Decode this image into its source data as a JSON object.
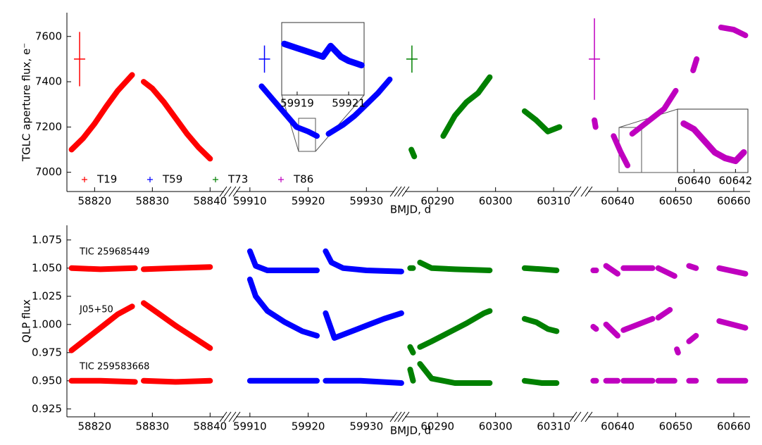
{
  "chart_data": [
    {
      "type": "line",
      "ylabel": "TGLC aperture flux, e⁻",
      "xlabel": "BMJD, d",
      "ylim": [
        6915,
        7705
      ],
      "yticks": [
        7000,
        7200,
        7400,
        7600
      ],
      "legend": "lower left",
      "segments": [
        {
          "xlim": [
            58815.2,
            58842.4
          ],
          "xticks": [
            58820,
            58830,
            58840
          ],
          "series": [
            {
              "name": "T19",
              "color": "#ff0000",
              "x": [
                58816,
                58818,
                58820,
                58822,
                58824,
                58826.5,
                null,
                58828.5,
                58830,
                58832,
                58834,
                58836,
                58838,
                58840
              ],
              "values": [
                7100,
                7150,
                7215,
                7290,
                7360,
                7430,
                null,
                7400,
                7370,
                7310,
                7240,
                7170,
                7110,
                7060
              ],
              "errorbar": {
                "x": 58817.4,
                "y": 7500,
                "yerr": 120
              }
            }
          ]
        },
        {
          "xlim": [
            59907.6,
            59934.8
          ],
          "xticks": [
            59910,
            59920,
            59930
          ],
          "series": [
            {
              "name": "T59",
              "color": "#0000ff",
              "x": [
                59912,
                59914,
                59916,
                59918,
                59920,
                59921.5,
                null,
                59923.5,
                59926,
                59928,
                59930,
                59932,
                59934
              ],
              "values": [
                7380,
                7320,
                7260,
                7200,
                7180,
                7160,
                null,
                7170,
                7210,
                7250,
                7300,
                7350,
                7410
              ],
              "errorbar": {
                "x": 59912.5,
                "y": 7500,
                "yerr": 60
              }
            }
          ]
        },
        {
          "xlim": [
            60284.4,
            60313.5
          ],
          "xticks": [
            60290,
            60300,
            60310
          ],
          "series": [
            {
              "name": "T73",
              "color": "#008000",
              "x": [
                60285.5,
                60286,
                null,
                60291,
                60293,
                60295,
                60297,
                60299,
                null,
                60305,
                60307,
                60309,
                60311
              ],
              "values": [
                7100,
                7070,
                null,
                7160,
                7250,
                7310,
                7350,
                7420,
                null,
                7270,
                7230,
                7180,
                7200
              ],
              "errorbar": {
                "x": 60285.6,
                "y": 7500,
                "yerr": 60
              }
            }
          ]
        },
        {
          "xlim": [
            60634.9,
            60662.8
          ],
          "xticks": [
            60640,
            60650,
            60660
          ],
          "series": [
            {
              "name": "T86",
              "color": "#bf00bf",
              "x": [
                60636,
                60636.2,
                null,
                60639.3,
                60640.5,
                60641.7,
                null,
                60642.5,
                60645,
                60648,
                60650,
                null,
                60653,
                60653.6,
                null,
                60657.8,
                60660,
                60662
              ],
              "values": [
                7230,
                7200,
                null,
                7160,
                7090,
                7030,
                null,
                7170,
                7220,
                7280,
                7360,
                null,
                7450,
                7500,
                null,
                7640,
                7630,
                7605
              ],
              "errorbar": {
                "x": 60636,
                "y": 7500,
                "yerr": 180
              }
            }
          ]
        }
      ],
      "insets": [
        {
          "xlim": [
            59918.4,
            59921.6
          ],
          "xticks": [
            59919,
            59921
          ],
          "ylim": [
            7080,
            7250
          ],
          "color": "#0000ff",
          "x": [
            59918.5,
            59919,
            59919.5,
            59920,
            59920.3,
            59920.7,
            59921,
            59921.5
          ],
          "values": [
            7200,
            7190,
            7180,
            7170,
            7195,
            7170,
            7160,
            7150
          ]
        },
        {
          "xlim": [
            60639.2,
            60642.6
          ],
          "xticks": [
            60640,
            60642
          ],
          "ylim": [
            6990,
            7210
          ],
          "color": "#bf00bf",
          "x": [
            60639.5,
            60640,
            60640.5,
            60641,
            60641.5,
            60642,
            60642.4
          ],
          "values": [
            7160,
            7140,
            7100,
            7060,
            7040,
            7030,
            7060
          ]
        }
      ]
    },
    {
      "type": "line",
      "ylabel": "QLP flux",
      "xlabel": "BMJD, d",
      "ylim": [
        0.918,
        1.088
      ],
      "yticks": [
        0.925,
        {
          "value": 0.95,
          "label": "0.950"
        },
        0.975,
        {
          "value": 1,
          "label": "1.000"
        },
        1.025,
        {
          "value": 1.05,
          "label": "1.050"
        },
        1.075
      ],
      "annotations": [
        "TIC 259685449",
        "J05+50",
        "TIC 259583668"
      ],
      "segments": [
        {
          "xlim": [
            58815.2,
            58842.4
          ],
          "xticks": [
            58820,
            58830,
            58840
          ],
          "color": "#ff0000",
          "series": [
            {
              "x": [
                58816,
                58821,
                58827,
                null,
                58828.5,
                58834,
                58840
              ],
              "values": [
                1.05,
                1.049,
                1.05,
                null,
                1.049,
                1.05,
                1.051
              ]
            },
            {
              "x": [
                58816,
                58818,
                58820,
                58822,
                58824,
                58826.5,
                null,
                58828.5,
                58831,
                58834,
                58837,
                58840
              ],
              "values": [
                0.977,
                0.985,
                0.993,
                1.001,
                1.009,
                1.016,
                null,
                1.019,
                1.01,
                0.999,
                0.989,
                0.979
              ]
            },
            {
              "x": [
                58816,
                58821,
                58827,
                null,
                58828.5,
                58834,
                58840
              ],
              "values": [
                0.95,
                0.95,
                0.949,
                null,
                0.95,
                0.949,
                0.95
              ]
            }
          ]
        },
        {
          "xlim": [
            59907.6,
            59934.8
          ],
          "xticks": [
            59910,
            59920,
            59930
          ],
          "color": "#0000ff",
          "series": [
            {
              "x": [
                59910,
                59911,
                59913,
                59917,
                59921.5,
                null,
                59923,
                59924,
                59926,
                59930,
                59936
              ],
              "values": [
                1.065,
                1.052,
                1.048,
                1.048,
                1.048,
                null,
                1.065,
                1.055,
                1.05,
                1.048,
                1.047
              ]
            },
            {
              "x": [
                59910,
                59911,
                59913,
                59916,
                59919,
                59921.5,
                null,
                59923,
                59924.5,
                59927,
                59930,
                59933,
                59936
              ],
              "values": [
                1.04,
                1.025,
                1.012,
                1.002,
                0.994,
                0.99,
                null,
                1.01,
                0.988,
                0.993,
                0.999,
                1.005,
                1.01
              ]
            },
            {
              "x": [
                59910,
                59915,
                59921.5,
                null,
                59923,
                59929,
                59936
              ],
              "values": [
                0.95,
                0.95,
                0.95,
                null,
                0.95,
                0.95,
                0.948
              ]
            }
          ]
        },
        {
          "xlim": [
            60284.4,
            60313.5
          ],
          "xticks": [
            60290,
            60300,
            60310
          ],
          "color": "#008000",
          "series": [
            {
              "x": [
                60285.3,
                60285.8,
                null,
                60287,
                60289,
                60293,
                60299,
                null,
                60305,
                60308,
                60310.5
              ],
              "values": [
                1.05,
                1.05,
                null,
                1.055,
                1.05,
                1.049,
                1.048,
                null,
                1.05,
                1.049,
                1.048
              ]
            },
            {
              "x": [
                60285.3,
                60285.8,
                null,
                60287,
                60289,
                60292,
                60295,
                60298,
                60299,
                null,
                60305,
                60307,
                60309,
                60310.5
              ],
              "values": [
                0.98,
                0.975,
                null,
                0.98,
                0.985,
                0.993,
                1.001,
                1.01,
                1.012,
                null,
                1.005,
                1.002,
                0.996,
                0.994
              ]
            },
            {
              "x": [
                60285.3,
                60285.8,
                null,
                60287,
                60289,
                60293,
                60299,
                null,
                60305,
                60308,
                60310.5
              ],
              "values": [
                0.96,
                0.95,
                null,
                0.965,
                0.952,
                0.948,
                0.948,
                null,
                0.95,
                0.948,
                0.948
              ]
            }
          ]
        },
        {
          "xlim": [
            60634.9,
            60662.8
          ],
          "xticks": [
            60640,
            60650,
            60660
          ],
          "color": "#bf00bf",
          "series": [
            {
              "x": [
                60635.8,
                60636.3,
                null,
                60638,
                60640,
                null,
                60641,
                60646,
                null,
                60647,
                60649.8,
                null,
                60652.3,
                60653.5,
                null,
                60657.5,
                60662
              ],
              "values": [
                1.048,
                1.048,
                null,
                1.052,
                1.045,
                null,
                1.05,
                1.05,
                null,
                1.05,
                1.043,
                null,
                1.052,
                1.05,
                null,
                1.05,
                1.045
              ]
            },
            {
              "x": [
                60635.8,
                60636.3,
                null,
                60638,
                60640,
                null,
                60641,
                60646,
                null,
                60647,
                60649,
                null,
                60650.2,
                60650.4,
                null,
                60652.3,
                60653.5,
                null,
                60657.5,
                60662
              ],
              "values": [
                0.998,
                0.996,
                null,
                1.0,
                0.99,
                null,
                0.995,
                1.005,
                null,
                1.006,
                1.013,
                null,
                0.978,
                0.975,
                null,
                0.985,
                0.99,
                null,
                1.003,
                0.997
              ]
            },
            {
              "x": [
                60635.8,
                60636.3,
                null,
                60638,
                60640,
                null,
                60641,
                60646,
                null,
                60647,
                60649.8,
                null,
                60652.3,
                60653.5,
                null,
                60657.5,
                60662
              ],
              "values": [
                0.95,
                0.95,
                null,
                0.95,
                0.95,
                null,
                0.95,
                0.95,
                null,
                0.95,
                0.95,
                null,
                0.95,
                0.95,
                null,
                0.95,
                0.95
              ]
            }
          ]
        }
      ]
    }
  ]
}
